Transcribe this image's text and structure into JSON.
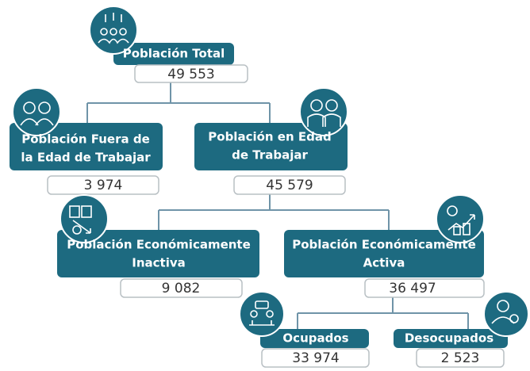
{
  "nodes": [
    {
      "label": [
        "Población Total"
      ],
      "value": "49 553"
    },
    {
      "label": [
        "Población Fuera de",
        "la Edad de Trabajar"
      ],
      "value": "3 974"
    },
    {
      "label": [
        "Población en Edad",
        "de Trabajar"
      ],
      "value": "45 579"
    },
    {
      "label": [
        "Población Económicamente",
        "Inactiva"
      ],
      "value": "9 082"
    },
    {
      "label": [
        "Población Económicamente",
        "Activa"
      ],
      "value": "36 497"
    },
    {
      "label": [
        "Ocupados"
      ],
      "value": "33 974"
    },
    {
      "label": [
        "Desocupados"
      ],
      "value": "2 523"
    }
  ]
}
